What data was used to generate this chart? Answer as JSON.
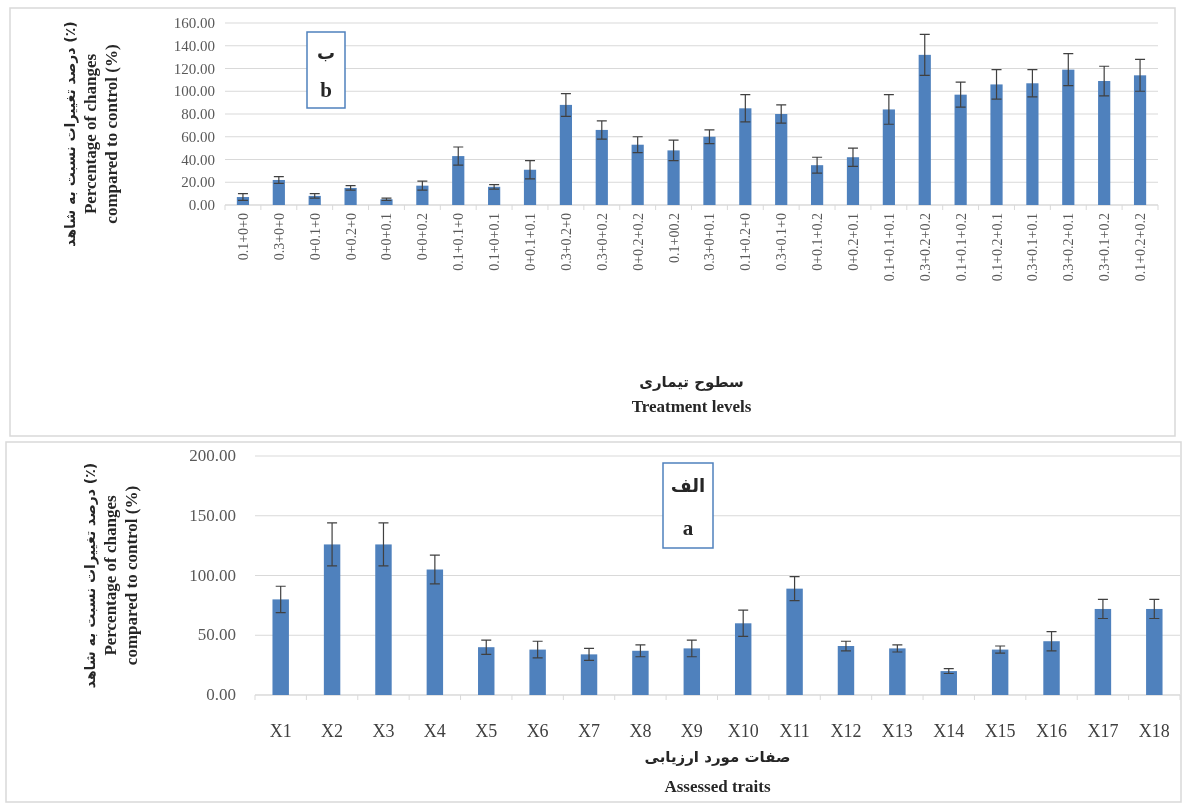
{
  "chart_data": [
    {
      "type": "bar",
      "color": "#4f81bd",
      "grid": "y",
      "ylabel": "درصد تغییرات نسبت به شاهد (٪)\nPercentage of changes compared to control (%)",
      "xlabel": "سطوح تیماری\nTreatment levels",
      "annotations": [
        "ب\nb"
      ],
      "categories": [
        "0.1+0+0",
        "0.3+0+0",
        "0+0.1+0",
        "0+0.2+0",
        "0+0+0.1",
        "0+0+0.2",
        "0.1+0.1+0",
        "0.1+0+0.1",
        "0+0.1+0.1",
        "0.3+0.2+0",
        "0.3+0+0.2",
        "0+0.2+0.2",
        "0.1+00.2",
        "0.3+0+0.1",
        "0.1+0.2+0",
        "0.3+0.1+0",
        "0+0.1+0.2",
        "0+0.2+0.1",
        "0.1+0.1+0.1",
        "0.3+0.2+0.2",
        "0.1+0.1+0.2",
        "0.1+0.2+0.1",
        "0.3+0.1+0.1",
        "0.3+0.2+0.1",
        "0.3+0.1+0.2",
        "0.1+0.2+0.2"
      ],
      "values": [
        7,
        22,
        8,
        15,
        5,
        17,
        43,
        16,
        31,
        88,
        66,
        53,
        48,
        60,
        85,
        80,
        35,
        42,
        84,
        132,
        97,
        106,
        107,
        119,
        109,
        114
      ],
      "errors": [
        3,
        3,
        2,
        2,
        1,
        4,
        8,
        2,
        8,
        10,
        8,
        7,
        9,
        6,
        12,
        8,
        7,
        8,
        13,
        18,
        11,
        13,
        12,
        14,
        13,
        14
      ],
      "ylim": [
        0,
        160
      ],
      "yticks": [
        {
          "value": 0,
          "label": "0.00"
        },
        {
          "value": 20,
          "label": "20.00"
        },
        {
          "value": 40,
          "label": "40.00"
        },
        {
          "value": 60,
          "label": "60.00"
        },
        {
          "value": 80,
          "label": "80.00"
        },
        {
          "value": 100,
          "label": "100.00"
        },
        {
          "value": 120,
          "label": "120.00"
        },
        {
          "value": 140,
          "label": "140.00"
        },
        {
          "value": 160,
          "label": "160.00"
        }
      ]
    },
    {
      "type": "bar",
      "color": "#4f81bd",
      "grid": "y",
      "ylabel": "درصد تغییرات نسبت به شاهد (٪)\nPercentage of changes compared to control (%)",
      "xlabel": "صفات مورد ارزیابی\nAssessed traits",
      "annotations": [
        "الف\na"
      ],
      "categories": [
        "X1",
        "X2",
        "X3",
        "X4",
        "X5",
        "X6",
        "X7",
        "X8",
        "X9",
        "X10",
        "X11",
        "X12",
        "X13",
        "X14",
        "X15",
        "X16",
        "X17",
        "X18"
      ],
      "values": [
        80,
        126,
        126,
        105,
        40,
        38,
        34,
        37,
        39,
        60,
        89,
        41,
        39,
        20,
        38,
        45,
        72,
        72
      ],
      "errors": [
        11,
        18,
        18,
        12,
        6,
        7,
        5,
        5,
        7,
        11,
        10,
        4,
        3,
        2,
        3,
        8,
        8,
        8
      ],
      "ylim": [
        0,
        200
      ],
      "yticks": [
        {
          "value": 0,
          "label": "0.00"
        },
        {
          "value": 50,
          "label": "50.00"
        },
        {
          "value": 100,
          "label": "100.00"
        },
        {
          "value": 150,
          "label": "150.00"
        },
        {
          "value": 200,
          "label": "200.00"
        }
      ]
    }
  ]
}
